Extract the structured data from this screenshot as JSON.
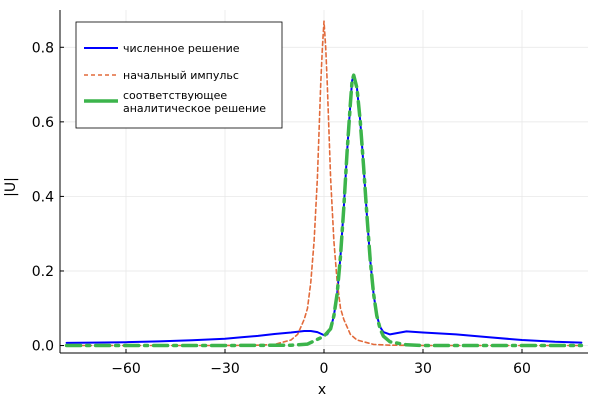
{
  "chart_data": {
    "type": "line",
    "title": "",
    "xlabel": "x",
    "ylabel": "|U|",
    "xlim": [
      -80,
      80
    ],
    "ylim": [
      -0.02,
      0.9
    ],
    "xticks": [
      -60,
      -30,
      0,
      30,
      60
    ],
    "xtick_labels": [
      "−60",
      "−30",
      "0",
      "30",
      "60"
    ],
    "yticks": [
      0.0,
      0.2,
      0.4,
      0.6,
      0.8
    ],
    "ytick_labels": [
      "0.0",
      "0.2",
      "0.4",
      "0.6",
      "0.8"
    ],
    "grid": true,
    "legend_position": "top-left",
    "series": [
      {
        "name": "численное решение",
        "color": "#0000ff",
        "style": "solid",
        "x": [
          -78,
          -70,
          -60,
          -50,
          -40,
          -30,
          -25,
          -20,
          -15,
          -10,
          -6,
          -4,
          -2,
          0,
          1,
          2,
          3,
          4,
          5,
          6,
          7,
          8,
          8.5,
          9,
          10,
          11,
          12,
          13,
          14,
          15,
          16,
          17,
          18,
          20,
          25,
          30,
          40,
          50,
          60,
          70,
          78
        ],
        "y": [
          0.007,
          0.008,
          0.009,
          0.011,
          0.014,
          0.018,
          0.022,
          0.026,
          0.031,
          0.035,
          0.039,
          0.039,
          0.036,
          0.028,
          0.03,
          0.045,
          0.08,
          0.14,
          0.24,
          0.37,
          0.52,
          0.65,
          0.71,
          0.725,
          0.69,
          0.6,
          0.48,
          0.35,
          0.23,
          0.14,
          0.08,
          0.05,
          0.036,
          0.03,
          0.038,
          0.035,
          0.03,
          0.022,
          0.015,
          0.01,
          0.008
        ]
      },
      {
        "name": "начальный импульс",
        "color": "#e26a3a",
        "style": "dashed",
        "x": [
          -78,
          -30,
          -20,
          -15,
          -10,
          -8,
          -6,
          -5,
          -4,
          -3,
          -2,
          -1,
          -0.5,
          0,
          0.5,
          1,
          2,
          3,
          4,
          5,
          6,
          8,
          10,
          15,
          20,
          30,
          78
        ],
        "y": [
          0,
          0,
          0.001,
          0.003,
          0.015,
          0.03,
          0.07,
          0.1,
          0.17,
          0.28,
          0.45,
          0.7,
          0.8,
          0.87,
          0.8,
          0.7,
          0.45,
          0.28,
          0.17,
          0.1,
          0.07,
          0.03,
          0.015,
          0.003,
          0.001,
          0,
          0
        ]
      },
      {
        "name": "соответствующее аналитическое решение",
        "color": "#3cb44b",
        "style": "dashdot",
        "x": [
          -78,
          -30,
          -10,
          -5,
          0,
          2,
          3,
          4,
          5,
          6,
          7,
          8,
          8.5,
          9,
          10,
          11,
          12,
          13,
          14,
          15,
          16,
          17,
          18,
          20,
          25,
          30,
          78
        ],
        "y": [
          0,
          0,
          0.001,
          0.004,
          0.025,
          0.045,
          0.08,
          0.14,
          0.24,
          0.37,
          0.52,
          0.65,
          0.71,
          0.725,
          0.69,
          0.6,
          0.48,
          0.35,
          0.23,
          0.14,
          0.08,
          0.045,
          0.025,
          0.01,
          0.002,
          0,
          0
        ]
      }
    ],
    "legend_entries": {
      "numeric": "численное решение",
      "initial": "начальный импульс",
      "analytic_line1": "соответствующее",
      "analytic_line2": "аналитическое решение"
    }
  }
}
